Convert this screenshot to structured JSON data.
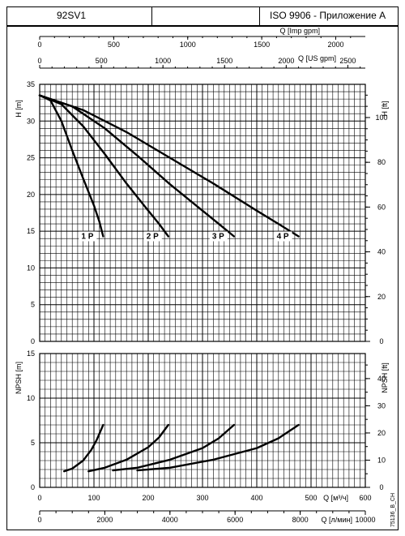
{
  "header": {
    "model": "92SV1",
    "standard": "ISO 9906 - Приложение A"
  },
  "code": "75136_B_CH",
  "chart_data": [
    {
      "type": "line",
      "title": "",
      "ylabel_left": "H [m]",
      "ylabel_right": "H [ft]",
      "ylim": [
        0,
        35
      ],
      "ylim_ft": [
        0,
        114.83
      ],
      "yticks": [
        "0",
        "5",
        "10",
        "15",
        "20",
        "25",
        "30",
        "35"
      ],
      "yticks_ft": [
        "0",
        "20",
        "40",
        "60",
        "80",
        "100"
      ],
      "xlim": [
        0,
        600
      ],
      "grid": true,
      "top_axes": {
        "imp_label": "Q [Imp gpm]",
        "imp_ticks": [
          "0",
          "500",
          "1000",
          "1500",
          "2000"
        ],
        "us_label": "Q [US gpm]",
        "us_ticks": [
          "0",
          "500",
          "1000",
          "1500",
          "2000",
          "2500"
        ]
      },
      "series": [
        {
          "name": "1 P",
          "x": [
            0,
            20,
            40,
            60,
            80,
            100,
            110,
            117
          ],
          "y": [
            33.5,
            32.8,
            30.0,
            26.0,
            22.2,
            18.5,
            16.3,
            14.3
          ]
        },
        {
          "name": "2 P",
          "x": [
            0,
            40,
            80,
            120,
            160,
            200,
            220,
            237
          ],
          "y": [
            33.5,
            32.3,
            29.3,
            25.5,
            21.5,
            17.8,
            16.0,
            14.3
          ]
        },
        {
          "name": "3 P",
          "x": [
            0,
            60,
            120,
            180,
            240,
            300,
            330,
            358
          ],
          "y": [
            33.5,
            32.0,
            29.0,
            25.3,
            21.4,
            17.8,
            16.0,
            14.3
          ]
        },
        {
          "name": "4 P",
          "x": [
            0,
            80,
            160,
            240,
            320,
            400,
            440,
            477
          ],
          "y": [
            33.5,
            31.5,
            28.5,
            25.0,
            21.5,
            17.8,
            16.0,
            14.3
          ]
        }
      ]
    },
    {
      "type": "line",
      "title": "",
      "ylabel_left": "NPSH [m]",
      "ylabel_right": "NPSH [ft]",
      "ylim": [
        0,
        15
      ],
      "ylim_ft": [
        0,
        49.21
      ],
      "yticks": [
        "0",
        "5",
        "10",
        "15"
      ],
      "yticks_ft": [
        "0",
        "10",
        "20",
        "30",
        "40"
      ],
      "xlim": [
        0,
        600
      ],
      "grid": true,
      "bottom_axes": {
        "m3h_label": "Q [м³/ч]",
        "m3h_ticks": [
          "0",
          "100",
          "200",
          "300",
          "400",
          "500",
          "600"
        ],
        "lpm_label": "Q [л/мин]",
        "lpm_ticks": [
          "0",
          "2000",
          "4000",
          "6000",
          "8000",
          "10000"
        ]
      },
      "series": [
        {
          "name": "1 P",
          "x": [
            45,
            60,
            80,
            95,
            105,
            117
          ],
          "y": [
            1.8,
            2.1,
            3.0,
            4.2,
            5.3,
            7.0
          ]
        },
        {
          "name": "2 P",
          "x": [
            90,
            120,
            160,
            200,
            220,
            237
          ],
          "y": [
            1.8,
            2.2,
            3.1,
            4.5,
            5.6,
            7.0
          ]
        },
        {
          "name": "3 P",
          "x": [
            135,
            180,
            240,
            300,
            330,
            358
          ],
          "y": [
            1.9,
            2.2,
            3.1,
            4.4,
            5.5,
            7.0
          ]
        },
        {
          "name": "4 P",
          "x": [
            180,
            240,
            320,
            400,
            440,
            477
          ],
          "y": [
            1.9,
            2.2,
            3.1,
            4.4,
            5.5,
            7.0
          ]
        }
      ]
    }
  ]
}
